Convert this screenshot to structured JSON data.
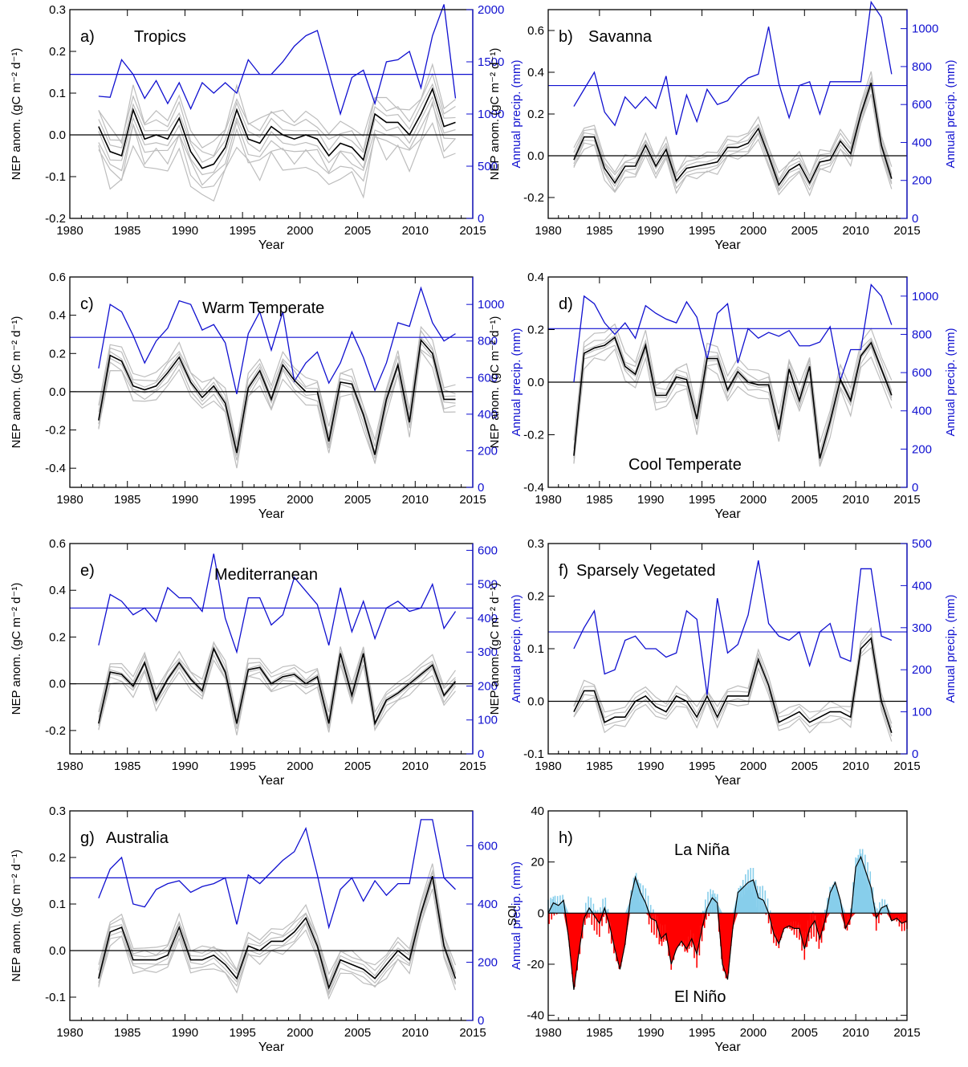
{
  "chart_data": [
    {
      "type": "line",
      "panel_label": "a)",
      "title": "Tropics",
      "xlabel": "Year",
      "ylabel_left": "NEP anom. (gC m⁻² d⁻¹)",
      "ylabel_right": "Annual precip. (mm)",
      "xlim": [
        1980,
        2015
      ],
      "ylim_left": [
        -0.2,
        0.3
      ],
      "ylim_right": [
        0,
        2000
      ],
      "xticks": [
        1980,
        1985,
        1990,
        1995,
        2000,
        2005,
        2010,
        2015
      ],
      "yticks_left": [
        -0.2,
        -0.1,
        0.0,
        0.1,
        0.2,
        0.3
      ],
      "yticks_right": [
        0,
        500,
        1000,
        1500,
        2000
      ],
      "x": [
        1982.5,
        1983.5,
        1984.5,
        1985.5,
        1986.5,
        1987.5,
        1988.5,
        1989.5,
        1990.5,
        1991.5,
        1992.5,
        1993.5,
        1994.5,
        1995.5,
        1996.5,
        1997.5,
        1998.5,
        1999.5,
        2000.5,
        2001.5,
        2002.5,
        2003.5,
        2004.5,
        2005.5,
        2006.5,
        2007.5,
        2008.5,
        2009.5,
        2010.5,
        2011.5,
        2012.5,
        2013.5
      ],
      "nep_mean": [
        0.02,
        -0.04,
        -0.05,
        0.06,
        -0.01,
        0.0,
        -0.01,
        0.04,
        -0.04,
        -0.08,
        -0.07,
        -0.03,
        0.06,
        -0.01,
        -0.02,
        0.02,
        0.0,
        -0.01,
        0.0,
        -0.01,
        -0.05,
        -0.02,
        -0.03,
        -0.06,
        0.05,
        0.03,
        0.03,
        0.0,
        0.05,
        0.11,
        0.02,
        0.03
      ],
      "precip": [
        1170,
        1160,
        1520,
        1380,
        1150,
        1320,
        1100,
        1300,
        1050,
        1300,
        1200,
        1300,
        1200,
        1520,
        1380,
        1380,
        1500,
        1650,
        1750,
        1800,
        1400,
        1000,
        1350,
        1420,
        1100,
        1500,
        1520,
        1600,
        1250,
        1750,
        2050,
        1150
      ],
      "precip_mean": 1380,
      "spread_offsets": [
        -0.09,
        -0.06,
        -0.04,
        -0.02,
        0.02,
        0.04,
        0.06
      ]
    },
    {
      "type": "line",
      "panel_label": "b)",
      "title": "Savanna",
      "xlabel": "Year",
      "ylabel_left": "NEP anom. (gC m⁻² d⁻¹)",
      "ylabel_right": "Annual precip. (mm)",
      "xlim": [
        1980,
        2015
      ],
      "ylim_left": [
        -0.3,
        0.7
      ],
      "ylim_right": [
        0,
        1100
      ],
      "xticks": [
        1980,
        1985,
        1990,
        1995,
        2000,
        2005,
        2010,
        2015
      ],
      "yticks_left": [
        -0.2,
        0.0,
        0.2,
        0.4,
        0.6
      ],
      "yticks_right": [
        0,
        200,
        400,
        600,
        800,
        1000
      ],
      "x": [
        1982.5,
        1983.5,
        1984.5,
        1985.5,
        1986.5,
        1987.5,
        1988.5,
        1989.5,
        1990.5,
        1991.5,
        1992.5,
        1993.5,
        1994.5,
        1995.5,
        1996.5,
        1997.5,
        1998.5,
        1999.5,
        2000.5,
        2001.5,
        2002.5,
        2003.5,
        2004.5,
        2005.5,
        2006.5,
        2007.5,
        2008.5,
        2009.5,
        2010.5,
        2011.5,
        2012.5,
        2013.5
      ],
      "nep_mean": [
        -0.02,
        0.09,
        0.09,
        -0.06,
        -0.13,
        -0.05,
        -0.05,
        0.05,
        -0.05,
        0.03,
        -0.12,
        -0.06,
        -0.05,
        -0.04,
        -0.03,
        0.04,
        0.04,
        0.06,
        0.13,
        0.0,
        -0.14,
        -0.07,
        -0.04,
        -0.13,
        -0.03,
        -0.02,
        0.07,
        0.01,
        0.2,
        0.35,
        0.05,
        -0.11
      ],
      "precip": [
        590,
        680,
        770,
        560,
        490,
        640,
        580,
        640,
        580,
        750,
        440,
        650,
        510,
        680,
        600,
        620,
        690,
        740,
        760,
        1010,
        710,
        530,
        700,
        720,
        550,
        720,
        720,
        720,
        720,
        1140,
        1060,
        760
      ],
      "precip_mean": 700,
      "spread_offsets": [
        -0.06,
        -0.04,
        -0.02,
        0.02,
        0.04,
        0.06
      ]
    },
    {
      "type": "line",
      "panel_label": "c)",
      "title": "Warm Temperate",
      "xlabel": "Year",
      "ylabel_left": "NEP anom. (gC m⁻² d⁻¹)",
      "ylabel_right": "Annual precip. (mm)",
      "xlim": [
        1980,
        2015
      ],
      "ylim_left": [
        -0.5,
        0.6
      ],
      "ylim_right": [
        0,
        1150
      ],
      "xticks": [
        1980,
        1985,
        1990,
        1995,
        2000,
        2005,
        2010,
        2015
      ],
      "yticks_left": [
        -0.4,
        -0.2,
        0.0,
        0.2,
        0.4,
        0.6
      ],
      "yticks_right": [
        0,
        200,
        400,
        600,
        800,
        1000
      ],
      "x": [
        1982.5,
        1983.5,
        1984.5,
        1985.5,
        1986.5,
        1987.5,
        1988.5,
        1989.5,
        1990.5,
        1991.5,
        1992.5,
        1993.5,
        1994.5,
        1995.5,
        1996.5,
        1997.5,
        1998.5,
        1999.5,
        2000.5,
        2001.5,
        2002.5,
        2003.5,
        2004.5,
        2005.5,
        2006.5,
        2007.5,
        2008.5,
        2009.5,
        2010.5,
        2011.5,
        2012.5,
        2013.5
      ],
      "nep_mean": [
        -0.15,
        0.19,
        0.16,
        0.03,
        0.01,
        0.03,
        0.1,
        0.18,
        0.05,
        -0.03,
        0.03,
        -0.06,
        -0.32,
        0.02,
        0.11,
        -0.04,
        0.14,
        0.06,
        0.0,
        0.0,
        -0.26,
        0.05,
        0.04,
        -0.12,
        -0.33,
        -0.04,
        0.14,
        -0.16,
        0.27,
        0.2,
        -0.04,
        -0.04
      ],
      "precip": [
        650,
        1000,
        960,
        830,
        680,
        800,
        870,
        1020,
        1000,
        860,
        890,
        790,
        510,
        840,
        960,
        750,
        960,
        580,
        680,
        740,
        570,
        680,
        850,
        710,
        530,
        680,
        900,
        880,
        1090,
        900,
        800,
        840
      ],
      "precip_mean": 820,
      "spread_offsets": [
        -0.08,
        -0.05,
        -0.02,
        0.02,
        0.05,
        0.08
      ]
    },
    {
      "type": "line",
      "panel_label": "d)",
      "title": "Cool Temperate",
      "xlabel": "Year",
      "ylabel_left": "NEP anom. (gC m⁻² d⁻¹)",
      "ylabel_right": "Annual precip. (mm)",
      "xlim": [
        1980,
        2015
      ],
      "ylim_left": [
        -0.4,
        0.4
      ],
      "ylim_right": [
        0,
        1100
      ],
      "xticks": [
        1980,
        1985,
        1990,
        1995,
        2000,
        2005,
        2010,
        2015
      ],
      "yticks_left": [
        -0.4,
        -0.2,
        0.0,
        0.2,
        0.4
      ],
      "yticks_right": [
        0,
        200,
        400,
        600,
        800,
        1000
      ],
      "x": [
        1982.5,
        1983.5,
        1984.5,
        1985.5,
        1986.5,
        1987.5,
        1988.5,
        1989.5,
        1990.5,
        1991.5,
        1992.5,
        1993.5,
        1994.5,
        1995.5,
        1996.5,
        1997.5,
        1998.5,
        1999.5,
        2000.5,
        2001.5,
        2002.5,
        2003.5,
        2004.5,
        2005.5,
        2006.5,
        2007.5,
        2008.5,
        2009.5,
        2010.5,
        2011.5,
        2012.5,
        2013.5
      ],
      "nep_mean": [
        -0.28,
        0.11,
        0.13,
        0.14,
        0.17,
        0.06,
        0.03,
        0.14,
        -0.05,
        -0.05,
        0.02,
        0.01,
        -0.14,
        0.09,
        0.09,
        -0.03,
        0.04,
        0.0,
        -0.01,
        -0.01,
        -0.18,
        0.05,
        -0.07,
        0.06,
        -0.29,
        -0.15,
        0.01,
        -0.07,
        0.1,
        0.15,
        0.05,
        -0.05
      ],
      "precip": [
        550,
        1000,
        960,
        860,
        800,
        860,
        780,
        950,
        910,
        880,
        860,
        970,
        890,
        670,
        910,
        960,
        650,
        830,
        780,
        810,
        790,
        820,
        740,
        740,
        760,
        840,
        560,
        720,
        720,
        1060,
        1000,
        850
      ],
      "precip_mean": 830,
      "spread_offsets": [
        -0.06,
        -0.03,
        -0.01,
        0.01,
        0.03,
        0.06
      ]
    },
    {
      "type": "line",
      "panel_label": "e)",
      "title": "Mediterranean",
      "xlabel": "Year",
      "ylabel_left": "NEP anom. (gC m⁻² d⁻¹)",
      "ylabel_right": "Annual precip. (mm)",
      "xlim": [
        1980,
        2015
      ],
      "ylim_left": [
        -0.3,
        0.6
      ],
      "ylim_right": [
        0,
        620
      ],
      "xticks": [
        1980,
        1985,
        1990,
        1995,
        2000,
        2005,
        2010,
        2015
      ],
      "yticks_left": [
        -0.2,
        0.0,
        0.2,
        0.4,
        0.6
      ],
      "yticks_right": [
        0,
        100,
        200,
        300,
        400,
        500,
        600
      ],
      "x": [
        1982.5,
        1983.5,
        1984.5,
        1985.5,
        1986.5,
        1987.5,
        1988.5,
        1989.5,
        1990.5,
        1991.5,
        1992.5,
        1993.5,
        1994.5,
        1995.5,
        1996.5,
        1997.5,
        1998.5,
        1999.5,
        2000.5,
        2001.5,
        2002.5,
        2003.5,
        2004.5,
        2005.5,
        2006.5,
        2007.5,
        2008.5,
        2009.5,
        2010.5,
        2011.5,
        2012.5,
        2013.5
      ],
      "nep_mean": [
        -0.17,
        0.05,
        0.04,
        -0.01,
        0.09,
        -0.07,
        0.02,
        0.09,
        0.02,
        -0.03,
        0.15,
        0.05,
        -0.17,
        0.06,
        0.07,
        0.0,
        0.03,
        0.04,
        0.0,
        0.03,
        -0.17,
        0.13,
        -0.05,
        0.13,
        -0.17,
        -0.07,
        -0.04,
        0.0,
        0.04,
        0.08,
        -0.05,
        0.01
      ],
      "precip": [
        320,
        470,
        450,
        410,
        430,
        390,
        490,
        460,
        460,
        420,
        590,
        400,
        300,
        460,
        460,
        380,
        410,
        520,
        480,
        440,
        320,
        490,
        360,
        450,
        340,
        430,
        450,
        420,
        430,
        500,
        370,
        420
      ],
      "precip_mean": 430,
      "spread_offsets": [
        -0.05,
        -0.03,
        -0.01,
        0.01,
        0.03,
        0.05
      ]
    },
    {
      "type": "line",
      "panel_label": "f)",
      "title": "Sparsely Vegetated",
      "xlabel": "Year",
      "ylabel_left": "NEP anom. (gC m⁻² d⁻¹)",
      "ylabel_right": "Annual precip. (mm)",
      "xlim": [
        1980,
        2015
      ],
      "ylim_left": [
        -0.1,
        0.3
      ],
      "ylim_right": [
        0,
        500
      ],
      "xticks": [
        1980,
        1985,
        1990,
        1995,
        2000,
        2005,
        2010,
        2015
      ],
      "yticks_left": [
        -0.1,
        0.0,
        0.1,
        0.2,
        0.3
      ],
      "yticks_right": [
        0,
        100,
        200,
        300,
        400,
        500
      ],
      "x": [
        1982.5,
        1983.5,
        1984.5,
        1985.5,
        1986.5,
        1987.5,
        1988.5,
        1989.5,
        1990.5,
        1991.5,
        1992.5,
        1993.5,
        1994.5,
        1995.5,
        1996.5,
        1997.5,
        1998.5,
        1999.5,
        2000.5,
        2001.5,
        2002.5,
        2003.5,
        2004.5,
        2005.5,
        2006.5,
        2007.5,
        2008.5,
        2009.5,
        2010.5,
        2011.5,
        2012.5,
        2013.5
      ],
      "nep_mean": [
        -0.02,
        0.02,
        0.02,
        -0.04,
        -0.03,
        -0.03,
        0.0,
        0.01,
        -0.01,
        -0.02,
        0.01,
        0.0,
        -0.03,
        0.01,
        -0.03,
        0.01,
        0.01,
        0.01,
        0.08,
        0.03,
        -0.04,
        -0.03,
        -0.02,
        -0.04,
        -0.03,
        -0.02,
        -0.02,
        -0.03,
        0.1,
        0.12,
        0.0,
        -0.06
      ],
      "precip": [
        250,
        300,
        340,
        190,
        200,
        270,
        280,
        250,
        250,
        230,
        240,
        340,
        320,
        140,
        370,
        240,
        260,
        330,
        460,
        310,
        280,
        270,
        290,
        210,
        290,
        310,
        230,
        220,
        440,
        440,
        280,
        270
      ],
      "precip_mean": 290,
      "spread_offsets": [
        -0.02,
        -0.01,
        0.01,
        0.02
      ]
    },
    {
      "type": "line",
      "panel_label": "g)",
      "title": "Australia",
      "xlabel": "Year",
      "ylabel_left": "NEP anom. (gC m⁻² d⁻¹)",
      "ylabel_right": "Annual precip. (mm)",
      "xlim": [
        1980,
        2015
      ],
      "ylim_left": [
        -0.15,
        0.3
      ],
      "ylim_right": [
        0,
        720
      ],
      "xticks": [
        1980,
        1985,
        1990,
        1995,
        2000,
        2005,
        2010,
        2015
      ],
      "yticks_left": [
        -0.1,
        0.0,
        0.1,
        0.2,
        0.3
      ],
      "yticks_right": [
        0,
        200,
        400,
        600
      ],
      "x": [
        1982.5,
        1983.5,
        1984.5,
        1985.5,
        1986.5,
        1987.5,
        1988.5,
        1989.5,
        1990.5,
        1991.5,
        1992.5,
        1993.5,
        1994.5,
        1995.5,
        1996.5,
        1997.5,
        1998.5,
        1999.5,
        2000.5,
        2001.5,
        2002.5,
        2003.5,
        2004.5,
        2005.5,
        2006.5,
        2007.5,
        2008.5,
        2009.5,
        2010.5,
        2011.5,
        2012.5,
        2013.5
      ],
      "nep_mean": [
        -0.06,
        0.04,
        0.05,
        -0.02,
        -0.02,
        -0.02,
        -0.01,
        0.05,
        -0.02,
        -0.02,
        -0.01,
        -0.03,
        -0.06,
        0.01,
        0.0,
        0.02,
        0.02,
        0.04,
        0.07,
        0.01,
        -0.08,
        -0.02,
        -0.03,
        -0.04,
        -0.06,
        -0.03,
        0.0,
        -0.02,
        0.08,
        0.16,
        0.01,
        -0.06
      ],
      "precip": [
        420,
        520,
        560,
        400,
        390,
        450,
        470,
        480,
        440,
        460,
        470,
        490,
        330,
        500,
        470,
        510,
        550,
        580,
        660,
        500,
        320,
        450,
        490,
        410,
        480,
        430,
        470,
        470,
        690,
        690,
        490,
        450
      ],
      "precip_mean": 490,
      "spread_offsets": [
        -0.03,
        -0.02,
        -0.01,
        0.01,
        0.02,
        0.03
      ]
    },
    {
      "type": "area",
      "panel_label": "h)",
      "xlabel": "Year",
      "ylabel": "SOI",
      "xlim": [
        1980,
        2015
      ],
      "ylim": [
        -42,
        40
      ],
      "xticks": [
        1980,
        1985,
        1990,
        1995,
        2000,
        2005,
        2010,
        2015
      ],
      "yticks": [
        -40,
        -20,
        0,
        20,
        40
      ],
      "annotation_top": "La Niña",
      "annotation_bottom": "El Niño",
      "positive_color": "#87ceeb",
      "negative_color": "#ff0000",
      "x": [
        1980,
        1980.5,
        1981,
        1981.5,
        1982,
        1982.5,
        1983,
        1983.5,
        1984,
        1984.5,
        1985,
        1985.5,
        1986,
        1986.5,
        1987,
        1987.5,
        1988,
        1988.5,
        1989,
        1989.5,
        1990,
        1990.5,
        1991,
        1991.5,
        1992,
        1992.5,
        1993,
        1993.5,
        1994,
        1994.5,
        1995,
        1995.5,
        1996,
        1996.5,
        1997,
        1997.5,
        1998,
        1998.5,
        1999,
        1999.5,
        2000,
        2000.5,
        2001,
        2001.5,
        2002,
        2002.5,
        2003,
        2003.5,
        2004,
        2004.5,
        2005,
        2005.5,
        2006,
        2006.5,
        2007,
        2007.5,
        2008,
        2008.5,
        2009,
        2009.5,
        2010,
        2010.5,
        2011,
        2011.5,
        2012,
        2012.5,
        2013,
        2013.5,
        2014,
        2014.5,
        2015
      ],
      "soi": [
        0,
        4,
        3,
        5,
        -10,
        -30,
        -15,
        -2,
        2,
        -1,
        -4,
        2,
        -5,
        -14,
        -22,
        -12,
        5,
        14,
        8,
        4,
        -2,
        -3,
        -10,
        -8,
        -20,
        -14,
        -11,
        -14,
        -10,
        -16,
        -6,
        2,
        6,
        4,
        -20,
        -26,
        -6,
        8,
        10,
        12,
        13,
        6,
        5,
        0,
        -8,
        -12,
        -6,
        -5,
        -6,
        -6,
        -14,
        -6,
        -3,
        -10,
        -3,
        8,
        12,
        5,
        -6,
        -2,
        18,
        22,
        16,
        10,
        -2,
        2,
        3,
        -3,
        -2,
        -4,
        -3
      ]
    }
  ]
}
